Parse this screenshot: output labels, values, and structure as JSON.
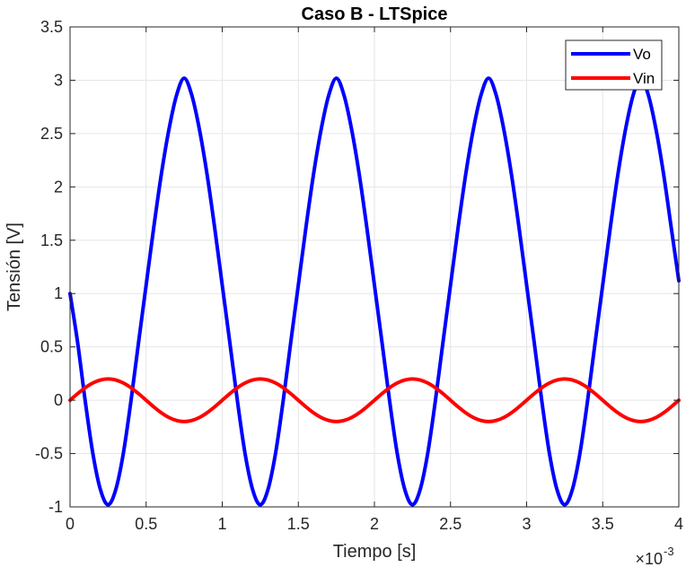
{
  "chart_data": {
    "type": "line",
    "title": "Caso B - LTSpice",
    "xlabel": "Tiempo [s]",
    "ylabel": "Tensión [V]",
    "x_multiplier_label": "×10",
    "x_multiplier_exponent": "-3",
    "xlim": [
      0,
      4
    ],
    "ylim": [
      -1,
      3.5
    ],
    "xticks": [
      "0",
      "0.5",
      "1",
      "1.5",
      "2",
      "2.5",
      "3",
      "3.5",
      "4"
    ],
    "yticks": [
      "-1",
      "-0.5",
      "0",
      "0.5",
      "1",
      "1.5",
      "2",
      "2.5",
      "3",
      "3.5"
    ],
    "grid": true,
    "legend_location": "top-right",
    "series": [
      {
        "name": "Vo",
        "color": "#0000ff",
        "x": [
          0,
          0.05,
          0.1,
          0.15,
          0.2,
          0.25,
          0.3,
          0.35,
          0.4,
          0.45,
          0.5,
          0.55,
          0.6,
          0.65,
          0.7,
          0.75,
          0.8,
          0.85,
          0.9,
          0.95,
          1.0,
          1.05,
          1.1,
          1.15,
          1.2,
          1.25,
          1.3,
          1.35,
          1.4,
          1.45,
          1.5,
          1.55,
          1.6,
          1.65,
          1.7,
          1.75,
          1.8,
          1.85,
          1.9,
          1.95,
          2.0,
          2.05,
          2.1,
          2.15,
          2.2,
          2.25,
          2.3,
          2.35,
          2.4,
          2.45,
          2.5,
          2.55,
          2.6,
          2.65,
          2.7,
          2.75,
          2.8,
          2.85,
          2.9,
          2.95,
          3.0,
          3.05,
          3.1,
          3.15,
          3.2,
          3.25,
          3.3,
          3.35,
          3.4,
          3.45,
          3.5,
          3.55,
          3.6,
          3.65,
          3.7,
          3.75,
          3.8,
          3.85,
          3.9,
          3.95,
          4.0
        ],
        "y": [
          1.0,
          0.54,
          -0.01,
          -0.5,
          -0.84,
          -0.98,
          -0.84,
          -0.5,
          -0.01,
          0.54,
          1.08,
          1.62,
          2.12,
          2.54,
          2.86,
          3.02,
          2.86,
          2.54,
          2.12,
          1.62,
          1.08,
          0.54,
          -0.01,
          -0.5,
          -0.84,
          -0.98,
          -0.84,
          -0.5,
          -0.01,
          0.54,
          1.08,
          1.62,
          2.12,
          2.54,
          2.86,
          3.02,
          2.86,
          2.54,
          2.12,
          1.62,
          1.08,
          0.54,
          -0.01,
          -0.5,
          -0.84,
          -0.98,
          -0.84,
          -0.5,
          -0.01,
          0.54,
          1.08,
          1.62,
          2.12,
          2.54,
          2.86,
          3.02,
          2.86,
          2.54,
          2.12,
          1.62,
          1.08,
          0.54,
          -0.01,
          -0.5,
          -0.84,
          -0.98,
          -0.84,
          -0.5,
          -0.01,
          0.54,
          1.08,
          1.62,
          2.12,
          2.54,
          2.86,
          3.02,
          2.86,
          2.54,
          2.12,
          1.62,
          1.12
        ]
      },
      {
        "name": "Vin",
        "color": "#ff0000",
        "x": [
          0,
          0.05,
          0.1,
          0.15,
          0.2,
          0.25,
          0.3,
          0.35,
          0.4,
          0.45,
          0.5,
          0.55,
          0.6,
          0.65,
          0.7,
          0.75,
          0.8,
          0.85,
          0.9,
          0.95,
          1.0,
          1.05,
          1.1,
          1.15,
          1.2,
          1.25,
          1.3,
          1.35,
          1.4,
          1.45,
          1.5,
          1.55,
          1.6,
          1.65,
          1.7,
          1.75,
          1.8,
          1.85,
          1.9,
          1.95,
          2.0,
          2.05,
          2.1,
          2.15,
          2.2,
          2.25,
          2.3,
          2.35,
          2.4,
          2.45,
          2.5,
          2.55,
          2.6,
          2.65,
          2.7,
          2.75,
          2.8,
          2.85,
          2.9,
          2.95,
          3.0,
          3.05,
          3.1,
          3.15,
          3.2,
          3.25,
          3.3,
          3.35,
          3.4,
          3.45,
          3.5,
          3.55,
          3.6,
          3.65,
          3.7,
          3.75,
          3.8,
          3.85,
          3.9,
          3.95,
          4.0
        ],
        "y": [
          0.0,
          0.062,
          0.118,
          0.162,
          0.19,
          0.2,
          0.19,
          0.162,
          0.118,
          0.062,
          0.0,
          -0.062,
          -0.118,
          -0.162,
          -0.19,
          -0.2,
          -0.19,
          -0.162,
          -0.118,
          -0.062,
          0.0,
          0.062,
          0.118,
          0.162,
          0.19,
          0.2,
          0.19,
          0.162,
          0.118,
          0.062,
          0.0,
          -0.062,
          -0.118,
          -0.162,
          -0.19,
          -0.2,
          -0.19,
          -0.162,
          -0.118,
          -0.062,
          0.0,
          0.062,
          0.118,
          0.162,
          0.19,
          0.2,
          0.19,
          0.162,
          0.118,
          0.062,
          0.0,
          -0.062,
          -0.118,
          -0.162,
          -0.19,
          -0.2,
          -0.19,
          -0.162,
          -0.118,
          -0.062,
          0.0,
          0.062,
          0.118,
          0.162,
          0.19,
          0.2,
          0.19,
          0.162,
          0.118,
          0.062,
          0.0,
          -0.062,
          -0.118,
          -0.162,
          -0.19,
          -0.2,
          -0.19,
          -0.162,
          -0.118,
          -0.062,
          0.0
        ]
      }
    ]
  }
}
